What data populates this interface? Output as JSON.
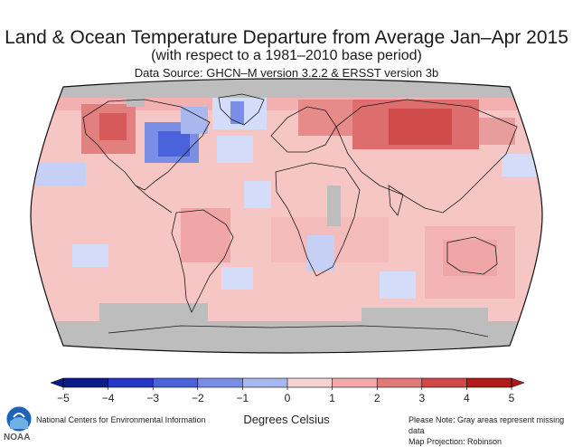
{
  "header": {
    "title": "Land & Ocean Temperature Departure from Average Jan–Apr 2015",
    "subtitle": "(with respect to a 1981–2010 base period)",
    "source": "Data Source: GHCN–M version 3.2.2 & ERSST version 3b"
  },
  "map": {
    "projection_label": "Map Projection: Robinson",
    "missing_color": "#bdbdbd",
    "ocean_base_color": "#f6c6c4"
  },
  "scale": {
    "ticks": [
      "−5",
      "−4",
      "−3",
      "−2",
      "−1",
      "0",
      "1",
      "2",
      "3",
      "4",
      "5"
    ],
    "unit_label": "Degrees Celsius",
    "colors": [
      "#0b1a8c",
      "#2437c9",
      "#4a63dc",
      "#7b8ee6",
      "#a9b7ef",
      "#d3dcf8",
      "#f7d2d2",
      "#f2a9a9",
      "#e47878",
      "#d24848",
      "#b51818"
    ]
  },
  "footer": {
    "org": "National Centers for Environmental Information",
    "note": "Please Note: Gray areas represent missing data",
    "projection": "Map Projection: Robinson",
    "logo_text": "NOAA"
  }
}
